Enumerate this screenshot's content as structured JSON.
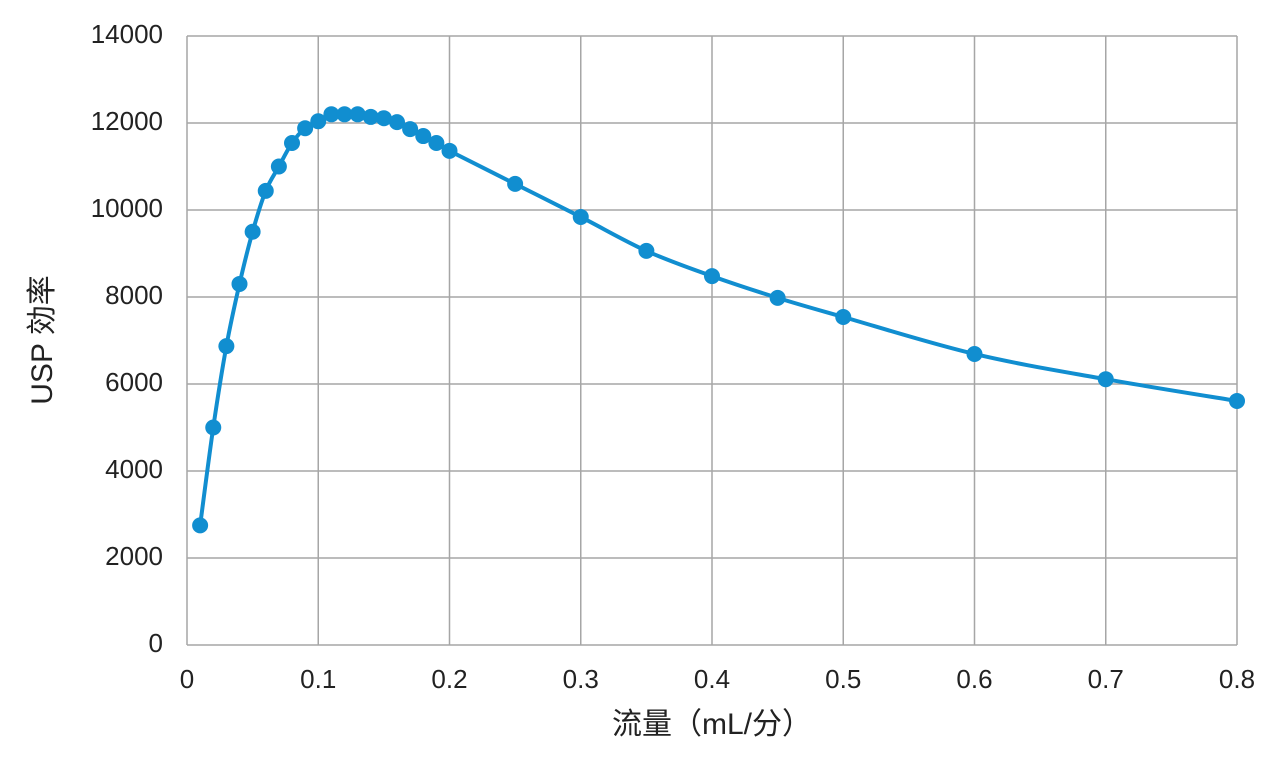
{
  "chart_data": {
    "type": "line",
    "x_label": "流量（mL/分）",
    "y_label": "USP 効率",
    "x": [
      0.01,
      0.02,
      0.03,
      0.04,
      0.05,
      0.06,
      0.07,
      0.08,
      0.09,
      0.1,
      0.11,
      0.12,
      0.13,
      0.14,
      0.15,
      0.16,
      0.17,
      0.18,
      0.19,
      0.2,
      0.25,
      0.3,
      0.35,
      0.4,
      0.45,
      0.5,
      0.6,
      0.7,
      0.8
    ],
    "series": [
      {
        "color": "#118ed0",
        "values": [
          2750,
          5000,
          6870,
          8300,
          9500,
          10440,
          11000,
          11540,
          11880,
          12040,
          12200,
          12200,
          12200,
          12140,
          12110,
          12020,
          11860,
          11700,
          11540,
          11360,
          10600,
          9840,
          9060,
          8480,
          7980,
          7540,
          6690,
          6110,
          5610
        ]
      }
    ],
    "xlim": [
      0,
      0.8
    ],
    "xticks": [
      0,
      0.1,
      0.2,
      0.3,
      0.4,
      0.5,
      0.6,
      0.7,
      0.8
    ],
    "ylim": [
      0,
      14000
    ],
    "yticks": [
      0,
      2000,
      4000,
      6000,
      8000,
      10000,
      12000,
      14000
    ],
    "grid": true
  }
}
